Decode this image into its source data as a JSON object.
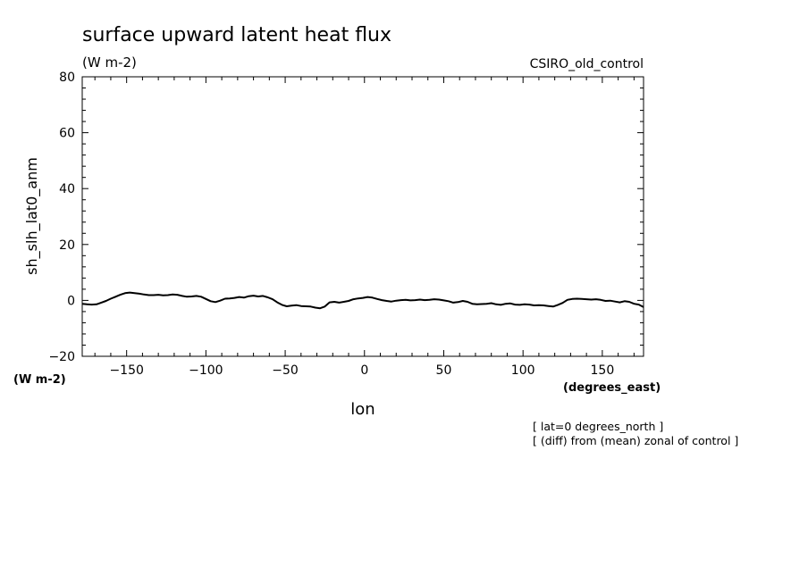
{
  "chart_data": {
    "type": "line",
    "title": "surface upward latent heat flux",
    "title_units": "(W m-2)",
    "model_label": "CSIRO_old_control",
    "ylabel": "sh_slh_lat0_anm",
    "y_units": "(W m-2)",
    "xlabel": "lon",
    "x_units": "(degrees_east)",
    "xlim": [
      -178,
      176
    ],
    "ylim": [
      -20,
      80
    ],
    "x_ticks": [
      -150,
      -100,
      -50,
      0,
      50,
      100,
      150
    ],
    "x_tick_labels": [
      "-150",
      "-100",
      "-50",
      "0",
      "50",
      "100",
      "150"
    ],
    "y_ticks": [
      -20,
      0,
      20,
      40,
      60,
      80
    ],
    "y_tick_labels": [
      "-20",
      "0",
      "20",
      "40",
      "60",
      "80"
    ],
    "notes": [
      "[ lat=0 degrees_north ]",
      "[ (diff) from (mean) zonal of control ]"
    ],
    "series": [
      {
        "x": [
          -178,
          -175,
          -172,
          -169,
          -166,
          -163,
          -160,
          -157,
          -154,
          -151,
          -148,
          -145,
          -142,
          -139,
          -136,
          -133,
          -130,
          -127,
          -124,
          -121,
          -118,
          -115,
          -112,
          -109,
          -106,
          -103,
          -100,
          -97,
          -94,
          -91,
          -88,
          -85,
          -82,
          -79,
          -76,
          -73,
          -70,
          -67,
          -64,
          -61,
          -58,
          -55,
          -52,
          -49,
          -46,
          -43,
          -40,
          -37,
          -34,
          -31,
          -28,
          -25,
          -22,
          -19,
          -16,
          -13,
          -10,
          -7,
          -4,
          -1,
          2,
          5,
          8,
          11,
          14,
          17,
          20,
          23,
          26,
          29,
          32,
          35,
          38,
          41,
          44,
          47,
          50,
          53,
          56,
          59,
          62,
          65,
          68,
          71,
          74,
          77,
          80,
          83,
          86,
          89,
          92,
          95,
          98,
          101,
          104,
          107,
          110,
          113,
          116,
          119,
          122,
          125,
          128,
          131,
          134,
          137,
          140,
          143,
          146,
          149,
          152,
          155,
          158,
          161,
          164,
          167,
          170,
          173,
          176
        ],
        "y": [
          -1.2,
          -1.4,
          -1.5,
          -1.4,
          -0.8,
          -0.2,
          0.6,
          1.3,
          2.0,
          2.6,
          2.8,
          2.6,
          2.4,
          2.1,
          1.9,
          1.9,
          2.0,
          1.8,
          1.9,
          2.1,
          2.0,
          1.6,
          1.3,
          1.4,
          1.6,
          1.3,
          0.5,
          -0.3,
          -0.6,
          -0.1,
          0.6,
          0.7,
          0.9,
          1.2,
          1.0,
          1.5,
          1.7,
          1.4,
          1.6,
          1.1,
          0.4,
          -0.7,
          -1.6,
          -2.1,
          -1.9,
          -1.7,
          -2.0,
          -2.1,
          -2.2,
          -2.6,
          -2.8,
          -2.2,
          -0.7,
          -0.5,
          -0.8,
          -0.5,
          -0.2,
          0.4,
          0.7,
          0.9,
          1.2,
          1.0,
          0.5,
          0.1,
          -0.2,
          -0.4,
          -0.1,
          0.1,
          0.2,
          0.0,
          0.1,
          0.3,
          0.1,
          0.2,
          0.4,
          0.3,
          0.0,
          -0.3,
          -0.8,
          -0.6,
          -0.2,
          -0.5,
          -1.2,
          -1.4,
          -1.3,
          -1.2,
          -1.0,
          -1.4,
          -1.6,
          -1.2,
          -1.1,
          -1.5,
          -1.6,
          -1.4,
          -1.5,
          -1.8,
          -1.7,
          -1.8,
          -2.0,
          -2.2,
          -1.6,
          -0.9,
          0.2,
          0.5,
          0.6,
          0.5,
          0.4,
          0.3,
          0.4,
          0.2,
          -0.2,
          -0.1,
          -0.4,
          -0.7,
          -0.3,
          -0.5,
          -1.2,
          -1.5,
          -2.4
        ]
      }
    ]
  }
}
